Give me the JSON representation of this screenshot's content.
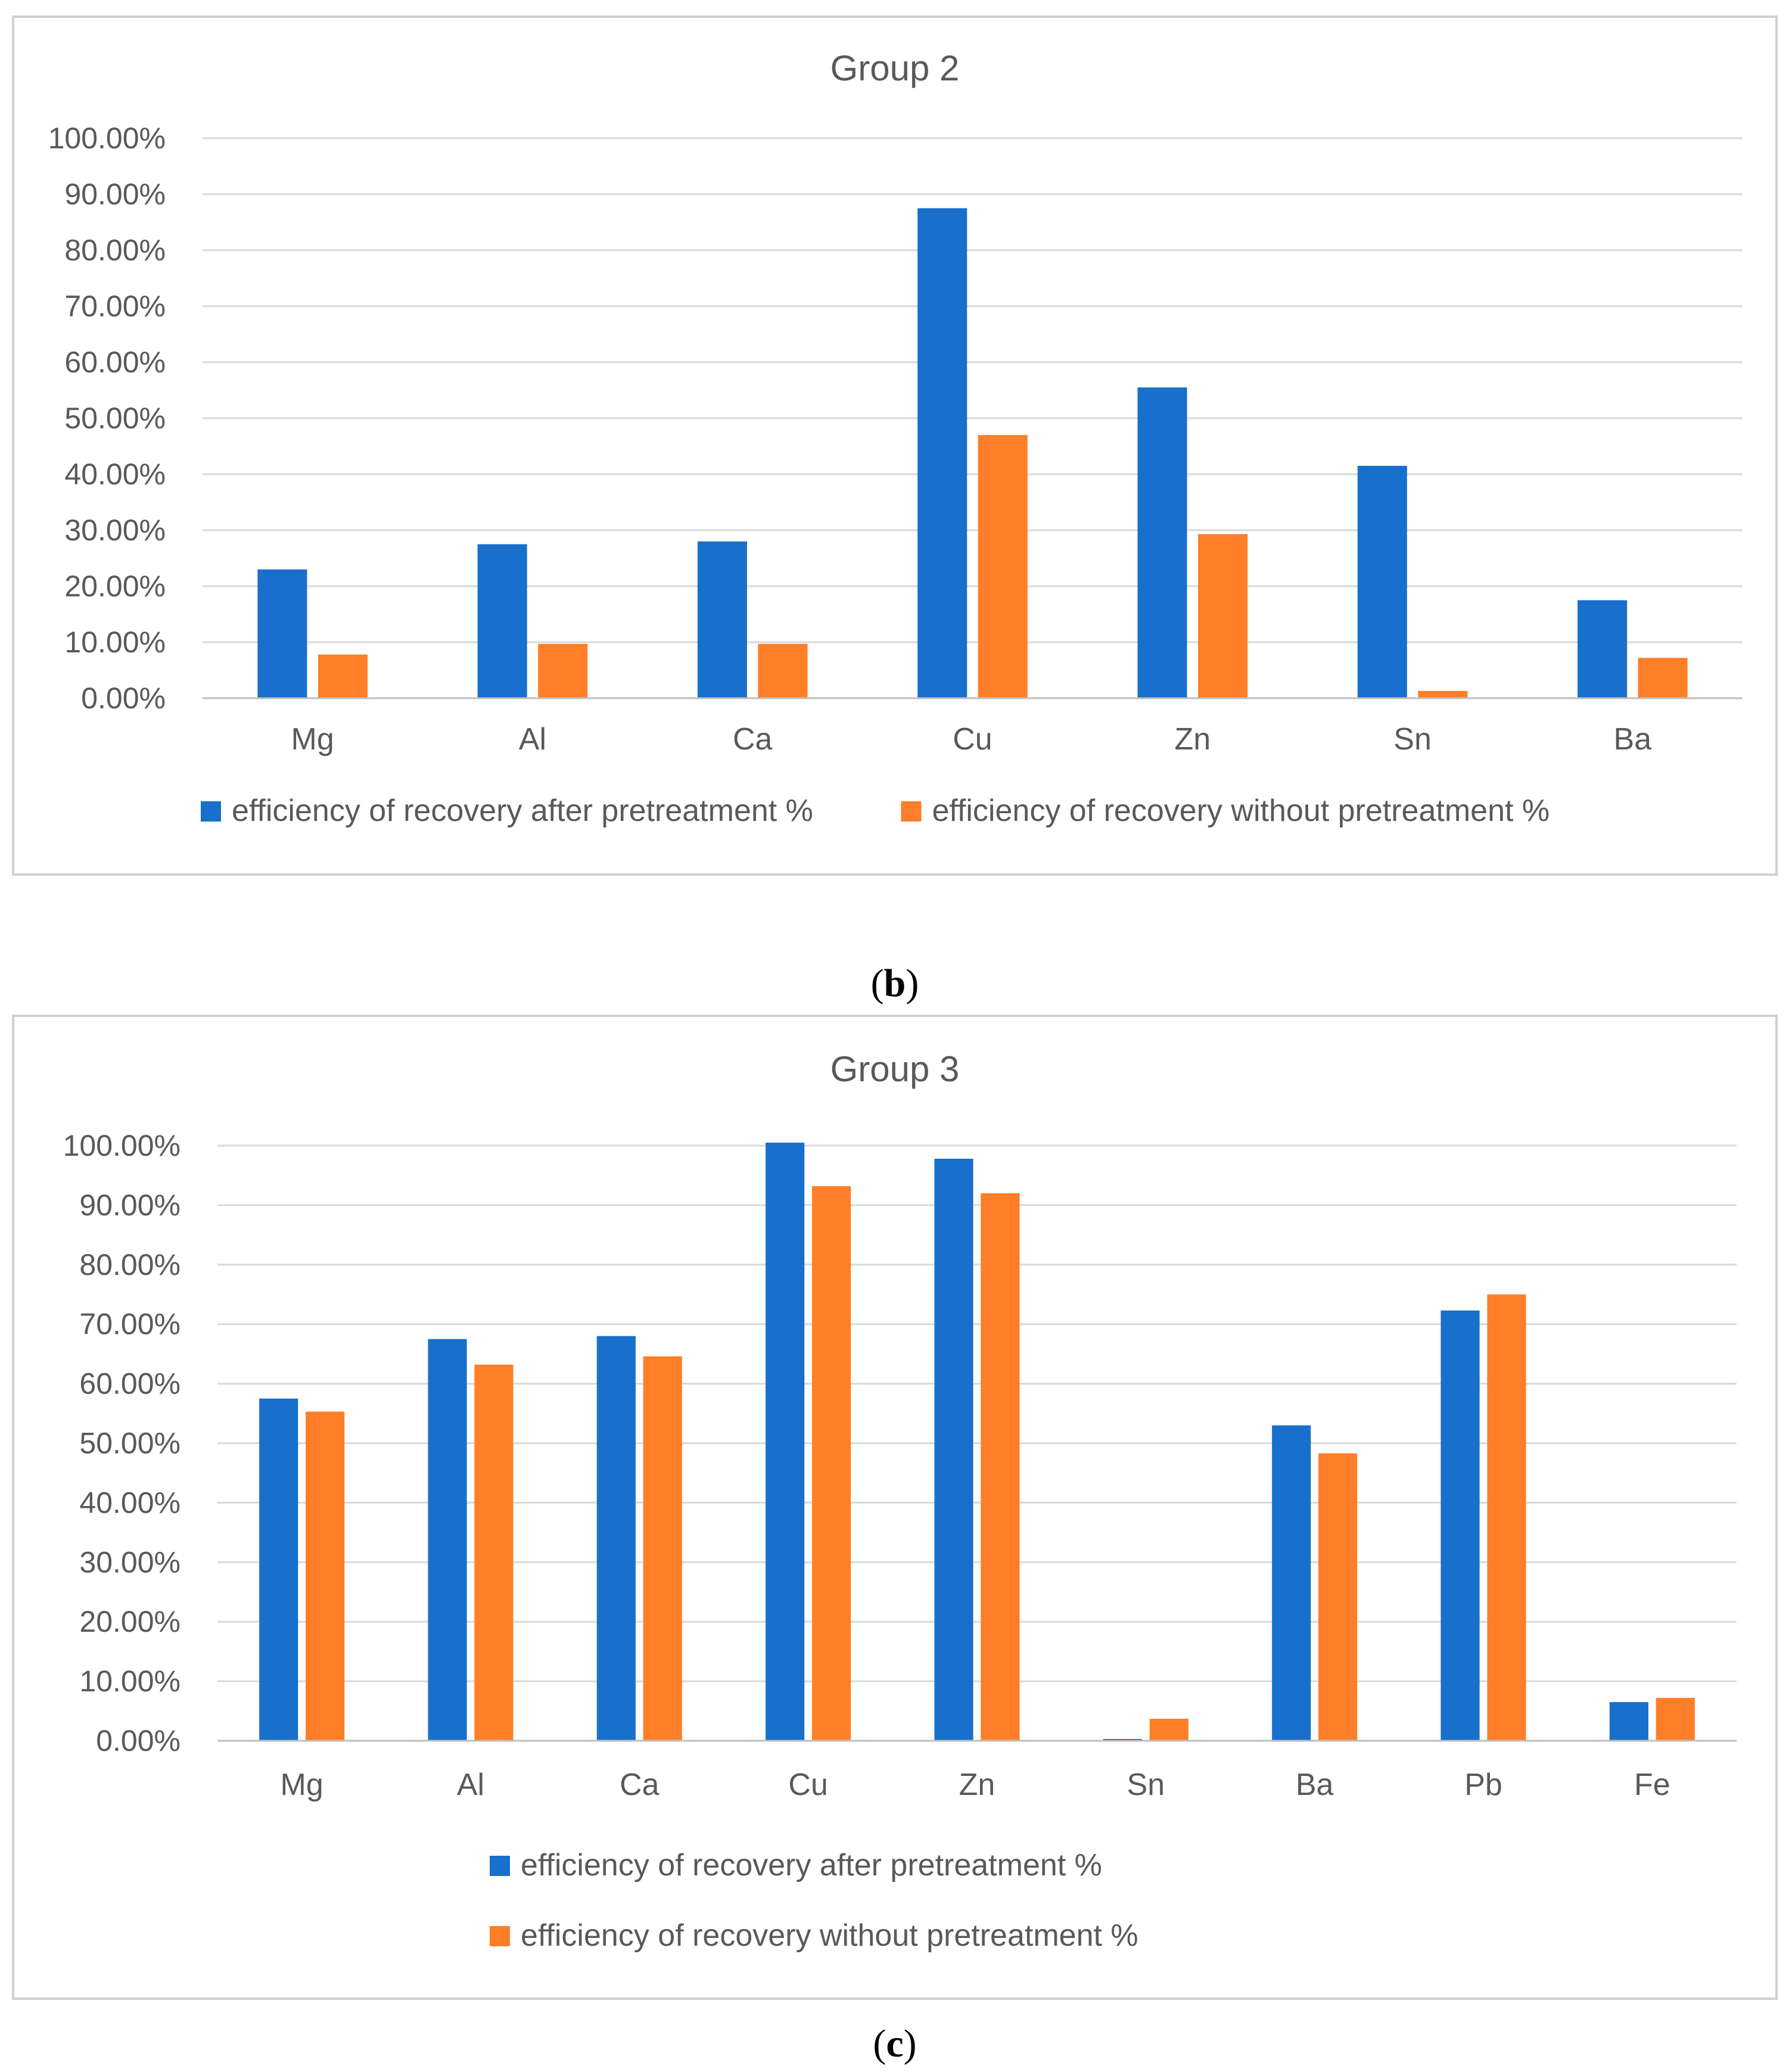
{
  "colors": {
    "after": "#1870CC",
    "without": "#FF7E27",
    "grid": "#D9D9D9",
    "axis": "#BFBFBF",
    "frame": "#D0D0D0",
    "text": "#595959"
  },
  "captions": [
    {
      "open": "(",
      "letter": "b",
      "close": ")"
    },
    {
      "open": "(",
      "letter": "c",
      "close": ")"
    }
  ],
  "chart_data": [
    {
      "type": "bar",
      "title": "Group 2",
      "xlabel": "",
      "ylabel": "",
      "ylim": [
        0,
        1
      ],
      "ytick_values": [
        0,
        0.1,
        0.2,
        0.3,
        0.4,
        0.5,
        0.6,
        0.7,
        0.8,
        0.9,
        1.0
      ],
      "yticks": [
        "0.00%",
        "10.00%",
        "20.00%",
        "30.00%",
        "40.00%",
        "50.00%",
        "60.00%",
        "70.00%",
        "80.00%",
        "90.00%",
        "100.00%"
      ],
      "grid": true,
      "legend_position": "bottom",
      "legend_layout": "row",
      "categories": [
        "Mg",
        "Al",
        "Ca",
        "Cu",
        "Zn",
        "Sn",
        "Ba"
      ],
      "series": [
        {
          "name": "efficiency of recovery after pretreatment %",
          "color": "#1870CC",
          "values": [
            0.23,
            0.275,
            0.28,
            0.875,
            0.555,
            0.415,
            0.175
          ]
        },
        {
          "name": "efficiency of recovery without pretreatment %",
          "color": "#FF7E27",
          "values": [
            0.078,
            0.097,
            0.097,
            0.47,
            0.293,
            0.013,
            0.072
          ]
        }
      ]
    },
    {
      "type": "bar",
      "title": "Group 3",
      "xlabel": "",
      "ylabel": "",
      "ylim": [
        0,
        1
      ],
      "ytick_values": [
        0,
        0.1,
        0.2,
        0.3,
        0.4,
        0.5,
        0.6,
        0.7,
        0.8,
        0.9,
        1.0
      ],
      "yticks": [
        "0.00%",
        "10.00%",
        "20.00%",
        "30.00%",
        "40.00%",
        "50.00%",
        "60.00%",
        "70.00%",
        "80.00%",
        "90.00%",
        "100.00%"
      ],
      "grid": true,
      "legend_position": "bottom",
      "legend_layout": "column",
      "categories": [
        "Mg",
        "Al",
        "Ca",
        "Cu",
        "Zn",
        "Sn",
        "Ba",
        "Pb",
        "Fe"
      ],
      "series": [
        {
          "name": "efficiency of recovery after pretreatment %",
          "color": "#1870CC",
          "values": [
            0.575,
            0.675,
            0.68,
            1.005,
            0.978,
            0.003,
            0.53,
            0.723,
            0.065
          ]
        },
        {
          "name": "efficiency of recovery without pretreatment %",
          "color": "#FF7E27",
          "values": [
            0.553,
            0.632,
            0.646,
            0.932,
            0.92,
            0.037,
            0.483,
            0.75,
            0.072
          ]
        }
      ]
    }
  ]
}
